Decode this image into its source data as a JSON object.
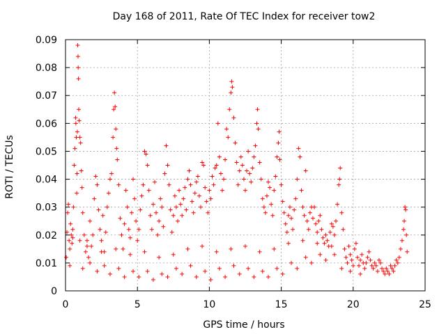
{
  "chart_data": {
    "type": "scatter",
    "title": "Day 168 of 2011, Rate Of TEC Index for receiver tow2",
    "xlabel": "GPS time / hours",
    "ylabel": "ROTI / TECUs",
    "xlim": [
      0,
      25
    ],
    "ylim": [
      0,
      0.09
    ],
    "xticks": [
      0,
      5,
      10,
      15,
      20,
      25
    ],
    "yticks": [
      0,
      0.01,
      0.02,
      0.03,
      0.04,
      0.05,
      0.06,
      0.07,
      0.08,
      0.09
    ],
    "ytick_labels": [
      "0",
      "0.01",
      "0.02",
      "0.03",
      "0.04",
      "0.05",
      "0.06",
      "0.07",
      "0.08",
      "0.09"
    ],
    "grid": true,
    "legend": "none",
    "marker": "+",
    "color": "#ff0000",
    "points": [
      [
        0.05,
        0.012
      ],
      [
        0.1,
        0.021
      ],
      [
        0.15,
        0.028
      ],
      [
        0.2,
        0.031
      ],
      [
        0.25,
        0.018
      ],
      [
        0.3,
        0.015
      ],
      [
        0.35,
        0.024
      ],
      [
        0.4,
        0.02
      ],
      [
        0.45,
        0.017
      ],
      [
        0.5,
        0.022
      ],
      [
        0.55,
        0.03
      ],
      [
        0.6,
        0.045
      ],
      [
        0.65,
        0.051
      ],
      [
        0.7,
        0.062
      ],
      [
        0.72,
        0.06
      ],
      [
        0.75,
        0.055
      ],
      [
        0.78,
        0.035
      ],
      [
        0.8,
        0.042
      ],
      [
        0.82,
        0.057
      ],
      [
        0.85,
        0.088
      ],
      [
        0.87,
        0.084
      ],
      [
        0.88,
        0.08
      ],
      [
        0.9,
        0.076
      ],
      [
        0.92,
        0.065
      ],
      [
        0.95,
        0.061
      ],
      [
        1.0,
        0.055
      ],
      [
        1.05,
        0.053
      ],
      [
        1.1,
        0.043
      ],
      [
        1.15,
        0.037
      ],
      [
        1.2,
        0.028
      ],
      [
        1.3,
        0.02
      ],
      [
        1.4,
        0.014
      ],
      [
        1.5,
        0.018
      ],
      [
        1.6,
        0.012
      ],
      [
        1.7,
        0.025
      ],
      [
        1.8,
        0.016
      ],
      [
        1.9,
        0.02
      ],
      [
        2.0,
        0.033
      ],
      [
        2.1,
        0.041
      ],
      [
        2.2,
        0.038
      ],
      [
        2.3,
        0.029
      ],
      [
        2.4,
        0.022
      ],
      [
        2.5,
        0.018
      ],
      [
        2.6,
        0.027
      ],
      [
        2.7,
        0.014
      ],
      [
        2.8,
        0.021
      ],
      [
        2.9,
        0.03
      ],
      [
        3.0,
        0.035
      ],
      [
        3.1,
        0.04
      ],
      [
        3.2,
        0.042
      ],
      [
        3.3,
        0.055
      ],
      [
        3.35,
        0.065
      ],
      [
        3.4,
        0.071
      ],
      [
        3.45,
        0.066
      ],
      [
        3.5,
        0.058
      ],
      [
        3.55,
        0.051
      ],
      [
        3.6,
        0.047
      ],
      [
        3.7,
        0.038
      ],
      [
        3.8,
        0.026
      ],
      [
        3.9,
        0.02
      ],
      [
        4.0,
        0.015
      ],
      [
        4.1,
        0.024
      ],
      [
        4.2,
        0.036
      ],
      [
        4.3,
        0.03
      ],
      [
        4.4,
        0.022
      ],
      [
        4.5,
        0.019
      ],
      [
        4.6,
        0.028
      ],
      [
        4.7,
        0.04
      ],
      [
        4.8,
        0.033
      ],
      [
        4.9,
        0.025
      ],
      [
        5.0,
        0.018
      ],
      [
        5.1,
        0.022
      ],
      [
        5.2,
        0.029
      ],
      [
        5.3,
        0.034
      ],
      [
        5.4,
        0.038
      ],
      [
        5.5,
        0.05
      ],
      [
        5.6,
        0.049
      ],
      [
        5.7,
        0.045
      ],
      [
        5.8,
        0.036
      ],
      [
        5.9,
        0.027
      ],
      [
        6.0,
        0.022
      ],
      [
        6.1,
        0.031
      ],
      [
        6.2,
        0.039
      ],
      [
        6.3,
        0.028
      ],
      [
        6.4,
        0.02
      ],
      [
        6.5,
        0.025
      ],
      [
        6.6,
        0.033
      ],
      [
        6.7,
        0.03
      ],
      [
        6.8,
        0.023
      ],
      [
        6.9,
        0.042
      ],
      [
        7.0,
        0.052
      ],
      [
        7.1,
        0.045
      ],
      [
        7.2,
        0.038
      ],
      [
        7.3,
        0.029
      ],
      [
        7.4,
        0.021
      ],
      [
        7.5,
        0.027
      ],
      [
        7.6,
        0.034
      ],
      [
        7.7,
        0.03
      ],
      [
        7.8,
        0.025
      ],
      [
        7.9,
        0.036
      ],
      [
        8.0,
        0.031
      ],
      [
        8.1,
        0.027
      ],
      [
        8.2,
        0.033
      ],
      [
        8.3,
        0.037
      ],
      [
        8.4,
        0.029
      ],
      [
        8.5,
        0.04
      ],
      [
        8.6,
        0.043
      ],
      [
        8.7,
        0.038
      ],
      [
        8.8,
        0.032
      ],
      [
        8.9,
        0.028
      ],
      [
        9.0,
        0.035
      ],
      [
        9.1,
        0.039
      ],
      [
        9.2,
        0.041
      ],
      [
        9.3,
        0.034
      ],
      [
        9.4,
        0.03
      ],
      [
        9.5,
        0.046
      ],
      [
        9.6,
        0.045
      ],
      [
        9.7,
        0.037
      ],
      [
        9.8,
        0.032
      ],
      [
        9.9,
        0.028
      ],
      [
        10.0,
        0.036
      ],
      [
        10.1,
        0.033
      ],
      [
        10.2,
        0.041
      ],
      [
        10.3,
        0.038
      ],
      [
        10.4,
        0.044
      ],
      [
        10.5,
        0.045
      ],
      [
        10.6,
        0.06
      ],
      [
        10.7,
        0.048
      ],
      [
        10.8,
        0.042
      ],
      [
        10.9,
        0.036
      ],
      [
        11.0,
        0.04
      ],
      [
        11.1,
        0.047
      ],
      [
        11.2,
        0.058
      ],
      [
        11.3,
        0.055
      ],
      [
        11.4,
        0.065
      ],
      [
        11.5,
        0.071
      ],
      [
        11.55,
        0.075
      ],
      [
        11.6,
        0.073
      ],
      [
        11.7,
        0.062
      ],
      [
        11.8,
        0.053
      ],
      [
        11.9,
        0.046
      ],
      [
        12.0,
        0.038
      ],
      [
        12.1,
        0.043
      ],
      [
        12.2,
        0.048
      ],
      [
        12.3,
        0.045
      ],
      [
        12.4,
        0.04
      ],
      [
        12.5,
        0.036
      ],
      [
        12.6,
        0.043
      ],
      [
        12.7,
        0.05
      ],
      [
        12.8,
        0.042
      ],
      [
        12.9,
        0.039
      ],
      [
        13.0,
        0.044
      ],
      [
        13.1,
        0.048
      ],
      [
        13.2,
        0.052
      ],
      [
        13.3,
        0.06
      ],
      [
        13.35,
        0.065
      ],
      [
        13.4,
        0.058
      ],
      [
        13.5,
        0.046
      ],
      [
        13.6,
        0.04
      ],
      [
        13.7,
        0.033
      ],
      [
        13.8,
        0.03
      ],
      [
        13.9,
        0.028
      ],
      [
        14.0,
        0.034
      ],
      [
        14.1,
        0.039
      ],
      [
        14.2,
        0.037
      ],
      [
        14.3,
        0.031
      ],
      [
        14.4,
        0.027
      ],
      [
        14.5,
        0.036
      ],
      [
        14.6,
        0.041
      ],
      [
        14.7,
        0.048
      ],
      [
        14.8,
        0.053
      ],
      [
        14.85,
        0.057
      ],
      [
        14.9,
        0.047
      ],
      [
        15.0,
        0.038
      ],
      [
        15.1,
        0.032
      ],
      [
        15.2,
        0.028
      ],
      [
        15.3,
        0.024
      ],
      [
        15.4,
        0.021
      ],
      [
        15.5,
        0.027
      ],
      [
        15.6,
        0.03
      ],
      [
        15.7,
        0.026
      ],
      [
        15.8,
        0.022
      ],
      [
        15.9,
        0.029
      ],
      [
        16.0,
        0.033
      ],
      [
        16.1,
        0.04
      ],
      [
        16.2,
        0.051
      ],
      [
        16.3,
        0.048
      ],
      [
        16.4,
        0.036
      ],
      [
        16.5,
        0.03
      ],
      [
        16.6,
        0.027
      ],
      [
        16.7,
        0.043
      ],
      [
        16.8,
        0.025
      ],
      [
        16.9,
        0.022
      ],
      [
        17.0,
        0.028
      ],
      [
        17.1,
        0.03
      ],
      [
        17.2,
        0.026
      ],
      [
        17.3,
        0.03
      ],
      [
        17.4,
        0.024
      ],
      [
        17.5,
        0.021
      ],
      [
        17.6,
        0.025
      ],
      [
        17.7,
        0.027
      ],
      [
        17.8,
        0.022
      ],
      [
        17.9,
        0.019
      ],
      [
        18.0,
        0.017
      ],
      [
        18.1,
        0.02
      ],
      [
        18.2,
        0.018
      ],
      [
        18.3,
        0.016
      ],
      [
        18.4,
        0.021
      ],
      [
        18.5,
        0.024
      ],
      [
        18.6,
        0.023
      ],
      [
        18.7,
        0.02
      ],
      [
        18.8,
        0.025
      ],
      [
        18.9,
        0.031
      ],
      [
        19.0,
        0.038
      ],
      [
        19.05,
        0.04
      ],
      [
        19.1,
        0.044
      ],
      [
        19.2,
        0.028
      ],
      [
        19.3,
        0.022
      ],
      [
        19.4,
        0.015
      ],
      [
        19.5,
        0.012
      ],
      [
        19.6,
        0.01
      ],
      [
        19.7,
        0.016
      ],
      [
        19.8,
        0.013
      ],
      [
        19.9,
        0.011
      ],
      [
        20.0,
        0.009
      ],
      [
        20.1,
        0.015
      ],
      [
        20.2,
        0.017
      ],
      [
        20.3,
        0.012
      ],
      [
        20.4,
        0.009
      ],
      [
        20.5,
        0.011
      ],
      [
        20.6,
        0.013
      ],
      [
        20.7,
        0.01
      ],
      [
        20.8,
        0.008
      ],
      [
        20.9,
        0.01
      ],
      [
        21.0,
        0.012
      ],
      [
        21.1,
        0.014
      ],
      [
        21.2,
        0.011
      ],
      [
        21.3,
        0.009
      ],
      [
        21.4,
        0.008
      ],
      [
        21.5,
        0.01
      ],
      [
        21.6,
        0.009
      ],
      [
        21.7,
        0.007
      ],
      [
        21.8,
        0.011
      ],
      [
        21.9,
        0.01
      ],
      [
        22.0,
        0.008
      ],
      [
        22.1,
        0.007
      ],
      [
        22.2,
        0.006
      ],
      [
        22.3,
        0.008
      ],
      [
        22.4,
        0.007
      ],
      [
        22.5,
        0.006
      ],
      [
        22.6,
        0.009
      ],
      [
        22.7,
        0.008
      ],
      [
        22.8,
        0.007
      ],
      [
        22.9,
        0.009
      ],
      [
        23.0,
        0.011
      ],
      [
        23.1,
        0.01
      ],
      [
        23.2,
        0.012
      ],
      [
        23.3,
        0.015
      ],
      [
        23.4,
        0.018
      ],
      [
        23.5,
        0.022
      ],
      [
        23.55,
        0.025
      ],
      [
        23.6,
        0.03
      ],
      [
        23.65,
        0.029
      ],
      [
        23.7,
        0.02
      ],
      [
        23.75,
        0.014
      ],
      [
        0.3,
        0.009
      ],
      [
        1.2,
        0.008
      ],
      [
        2.2,
        0.007
      ],
      [
        3.1,
        0.006
      ],
      [
        4.1,
        0.005
      ],
      [
        5.1,
        0.005
      ],
      [
        6.1,
        0.004
      ],
      [
        7.1,
        0.005
      ],
      [
        8.1,
        0.006
      ],
      [
        9.1,
        0.005
      ],
      [
        10.1,
        0.004
      ],
      [
        11.1,
        0.005
      ],
      [
        12.1,
        0.006
      ],
      [
        13.1,
        0.005
      ],
      [
        14.1,
        0.005
      ],
      [
        15.1,
        0.006
      ],
      [
        16.1,
        0.008
      ],
      [
        17.1,
        0.01
      ],
      [
        18.1,
        0.011
      ],
      [
        19.2,
        0.008
      ],
      [
        1.7,
        0.01
      ],
      [
        2.7,
        0.009
      ],
      [
        3.7,
        0.008
      ],
      [
        4.7,
        0.007
      ],
      [
        5.7,
        0.007
      ],
      [
        6.7,
        0.006
      ],
      [
        7.7,
        0.008
      ],
      [
        8.7,
        0.009
      ],
      [
        9.7,
        0.007
      ],
      [
        10.7,
        0.008
      ],
      [
        11.7,
        0.009
      ],
      [
        12.7,
        0.008
      ],
      [
        13.7,
        0.007
      ],
      [
        14.7,
        0.008
      ],
      [
        15.7,
        0.01
      ],
      [
        16.7,
        0.012
      ],
      [
        17.7,
        0.013
      ],
      [
        18.7,
        0.013
      ],
      [
        19.8,
        0.007
      ],
      [
        20.5,
        0.006
      ],
      [
        0.5,
        0.019
      ],
      [
        1.0,
        0.018
      ],
      [
        1.5,
        0.016
      ],
      [
        2.5,
        0.014
      ],
      [
        3.5,
        0.015
      ],
      [
        4.5,
        0.013
      ],
      [
        5.5,
        0.014
      ],
      [
        6.5,
        0.012
      ],
      [
        7.5,
        0.013
      ],
      [
        8.5,
        0.015
      ],
      [
        9.5,
        0.016
      ],
      [
        10.5,
        0.014
      ],
      [
        11.5,
        0.015
      ],
      [
        12.5,
        0.016
      ],
      [
        13.5,
        0.014
      ],
      [
        14.5,
        0.015
      ],
      [
        15.5,
        0.017
      ],
      [
        16.5,
        0.018
      ],
      [
        17.5,
        0.017
      ],
      [
        18.5,
        0.016
      ]
    ]
  }
}
